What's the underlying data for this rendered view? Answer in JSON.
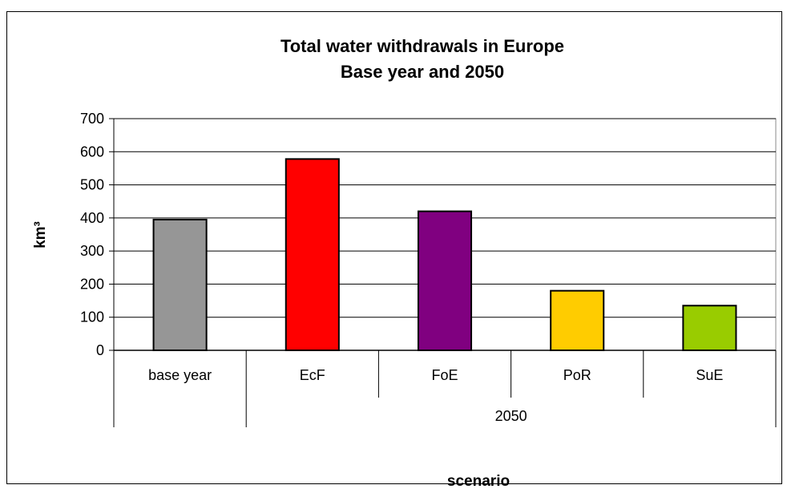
{
  "chart_data": {
    "type": "bar",
    "title": "Total water withdrawals in Europe",
    "subtitle": "Base year and 2050",
    "ylabel": "km³",
    "xlabel": "scenario",
    "ylim": [
      0,
      700
    ],
    "yticks": [
      0,
      100,
      200,
      300,
      400,
      500,
      600,
      700
    ],
    "grid": true,
    "categories": [
      "base year",
      "EcF",
      "FoE",
      "PoR",
      "SuE"
    ],
    "group_label": "2050",
    "group_members": [
      "EcF",
      "FoE",
      "PoR",
      "SuE"
    ],
    "values": [
      395,
      578,
      420,
      180,
      135
    ],
    "colors": [
      "#969696",
      "#ff0000",
      "#800080",
      "#ffcc00",
      "#99cc00"
    ]
  }
}
